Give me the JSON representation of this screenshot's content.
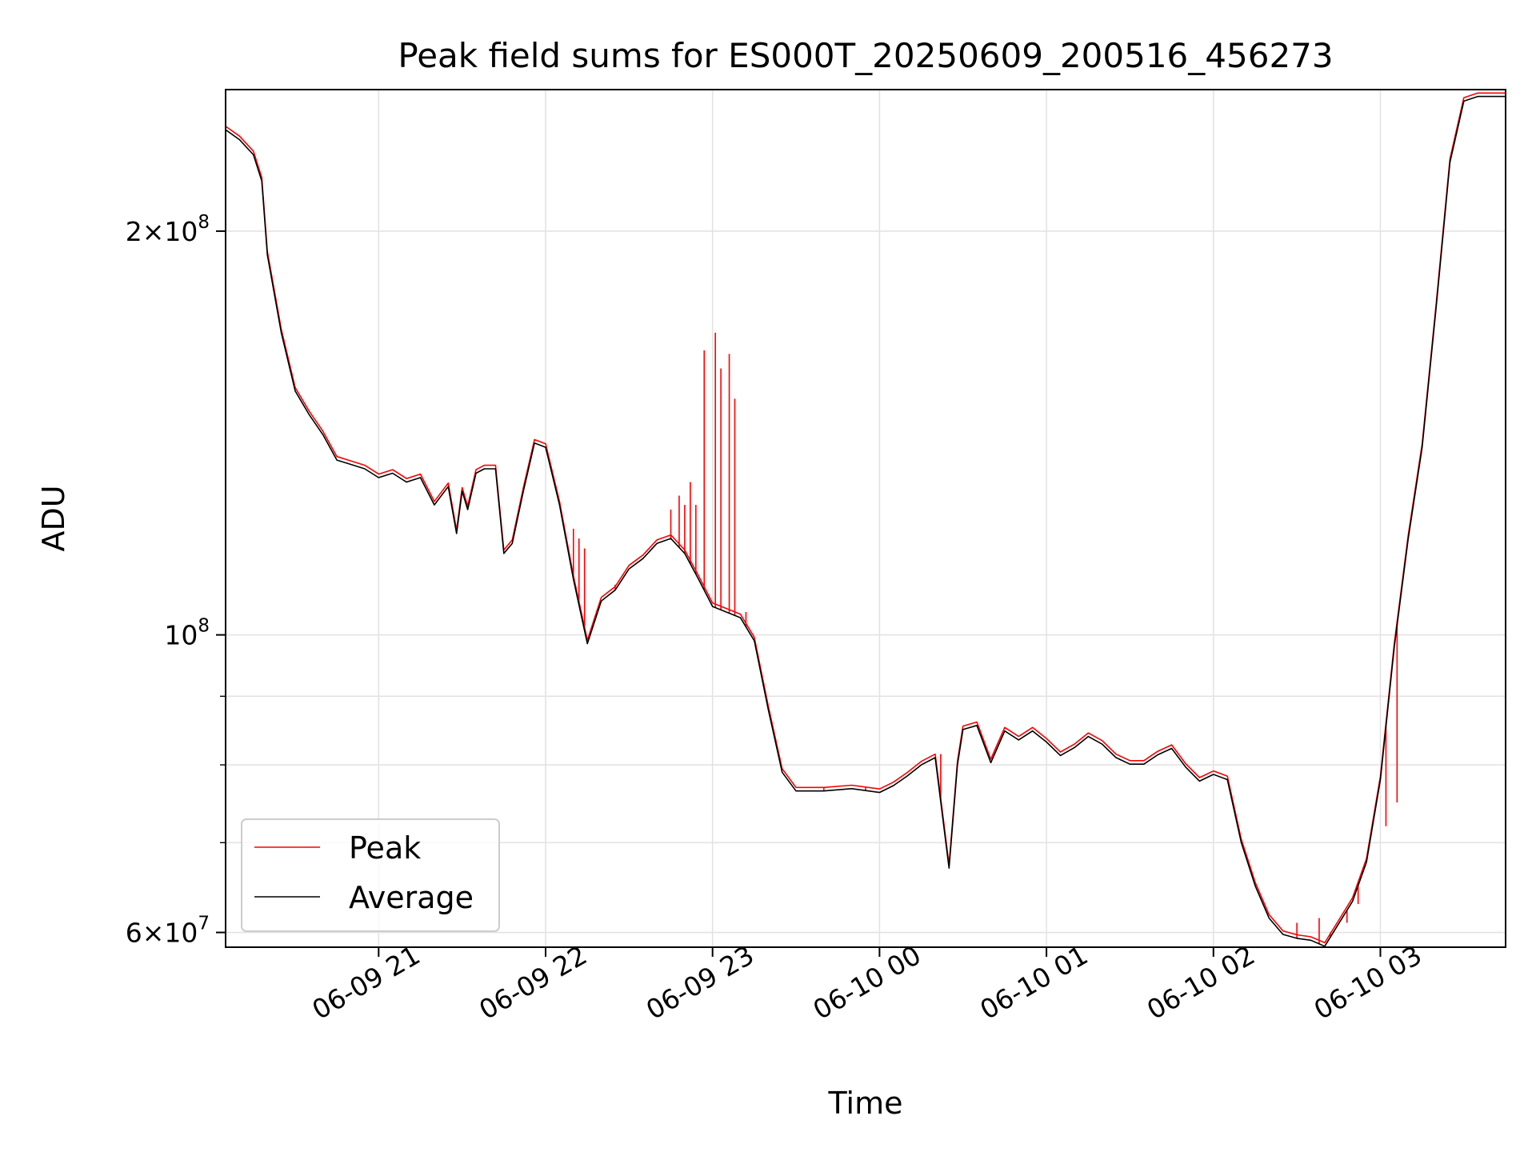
{
  "chart_data": {
    "type": "line",
    "title": "Peak field sums for ES000T_20250609_200516_456273",
    "xlabel": "Time",
    "ylabel": "ADU",
    "yscale": "log",
    "ylim": [
      58500000,
      255000000
    ],
    "xlim": [
      "2025-06-09 20:05",
      "2025-06-10 03:45"
    ],
    "grid": true,
    "legend_position": "lower-left",
    "x_ticks": [
      {
        "x": "2025-06-09 21:00",
        "label": "06-09 21"
      },
      {
        "x": "2025-06-09 22:00",
        "label": "06-09 22"
      },
      {
        "x": "2025-06-09 23:00",
        "label": "06-09 23"
      },
      {
        "x": "2025-06-10 00:00",
        "label": "06-10 00"
      },
      {
        "x": "2025-06-10 01:00",
        "label": "06-10 01"
      },
      {
        "x": "2025-06-10 02:00",
        "label": "06-10 02"
      },
      {
        "x": "2025-06-10 03:00",
        "label": "06-10 03"
      }
    ],
    "y_ticks": [
      {
        "y": 60000000,
        "base": "6",
        "exp": "7"
      },
      {
        "y": 100000000,
        "base": "",
        "exp": "8"
      },
      {
        "y": 200000000,
        "base": "2",
        "exp": "8"
      }
    ],
    "y_minor_ticks": [
      70000000,
      80000000,
      90000000
    ],
    "series": [
      {
        "name": "Average",
        "color": "#000000",
        "x": [
          "2025-06-09 20:05",
          "2025-06-09 20:10",
          "2025-06-09 20:15",
          "2025-06-09 20:18",
          "2025-06-09 20:20",
          "2025-06-09 20:25",
          "2025-06-09 20:30",
          "2025-06-09 20:35",
          "2025-06-09 20:40",
          "2025-06-09 20:45",
          "2025-06-09 20:50",
          "2025-06-09 20:55",
          "2025-06-09 21:00",
          "2025-06-09 21:05",
          "2025-06-09 21:10",
          "2025-06-09 21:15",
          "2025-06-09 21:20",
          "2025-06-09 21:25",
          "2025-06-09 21:28",
          "2025-06-09 21:30",
          "2025-06-09 21:32",
          "2025-06-09 21:35",
          "2025-06-09 21:38",
          "2025-06-09 21:42",
          "2025-06-09 21:45",
          "2025-06-09 21:48",
          "2025-06-09 21:52",
          "2025-06-09 21:56",
          "2025-06-09 22:00",
          "2025-06-09 22:05",
          "2025-06-09 22:10",
          "2025-06-09 22:15",
          "2025-06-09 22:20",
          "2025-06-09 22:25",
          "2025-06-09 22:30",
          "2025-06-09 22:35",
          "2025-06-09 22:40",
          "2025-06-09 22:45",
          "2025-06-09 22:50",
          "2025-06-09 22:55",
          "2025-06-09 23:00",
          "2025-06-09 23:05",
          "2025-06-09 23:10",
          "2025-06-09 23:15",
          "2025-06-09 23:20",
          "2025-06-09 23:25",
          "2025-06-09 23:30",
          "2025-06-09 23:40",
          "2025-06-09 23:50",
          "2025-06-10 00:00",
          "2025-06-10 00:05",
          "2025-06-10 00:10",
          "2025-06-10 00:15",
          "2025-06-10 00:20",
          "2025-06-10 00:25",
          "2025-06-10 00:28",
          "2025-06-10 00:30",
          "2025-06-10 00:35",
          "2025-06-10 00:40",
          "2025-06-10 00:45",
          "2025-06-10 00:50",
          "2025-06-10 00:55",
          "2025-06-10 01:00",
          "2025-06-10 01:05",
          "2025-06-10 01:10",
          "2025-06-10 01:15",
          "2025-06-10 01:20",
          "2025-06-10 01:25",
          "2025-06-10 01:30",
          "2025-06-10 01:35",
          "2025-06-10 01:40",
          "2025-06-10 01:45",
          "2025-06-10 01:50",
          "2025-06-10 01:55",
          "2025-06-10 02:00",
          "2025-06-10 02:05",
          "2025-06-10 02:10",
          "2025-06-10 02:15",
          "2025-06-10 02:20",
          "2025-06-10 02:25",
          "2025-06-10 02:30",
          "2025-06-10 02:35",
          "2025-06-10 02:40",
          "2025-06-10 02:45",
          "2025-06-10 02:50",
          "2025-06-10 02:55",
          "2025-06-10 03:00",
          "2025-06-10 03:05",
          "2025-06-10 03:10",
          "2025-06-10 03:15",
          "2025-06-10 03:20",
          "2025-06-10 03:25",
          "2025-06-10 03:30",
          "2025-06-10 03:35",
          "2025-06-10 03:40",
          "2025-06-10 03:45"
        ],
        "y": [
          238000000,
          234000000,
          228000000,
          218000000,
          192000000,
          168000000,
          152000000,
          146000000,
          141000000,
          135000000,
          134000000,
          133000000,
          131000000,
          132000000,
          130000000,
          131000000,
          125000000,
          129000000,
          119000000,
          128000000,
          124000000,
          132000000,
          133000000,
          133000000,
          115000000,
          117000000,
          128000000,
          139000000,
          138000000,
          125000000,
          110000000,
          98500000,
          106000000,
          108000000,
          112000000,
          114000000,
          117000000,
          118000000,
          115000000,
          110000000,
          105000000,
          104000000,
          103000000,
          99000000,
          88000000,
          79000000,
          76500000,
          76500000,
          76800000,
          76300000,
          77200000,
          78500000,
          80000000,
          81000000,
          67000000,
          80000000,
          85000000,
          85600000,
          80300000,
          84800000,
          83500000,
          84800000,
          83200000,
          81300000,
          82400000,
          84000000,
          82900000,
          81000000,
          80100000,
          80100000,
          81400000,
          82300000,
          79700000,
          77800000,
          78700000,
          78000000,
          70000000,
          65000000,
          61500000,
          59800000,
          59400000,
          59200000,
          58600000,
          60900000,
          63300000,
          67700000,
          78000000,
          98000000,
          118000000,
          138000000,
          175000000,
          225000000,
          250000000,
          252000000,
          252000000,
          252000000
        ]
      },
      {
        "name": "Peak",
        "color": "#ff0000",
        "x": [
          "2025-06-09 22:10",
          "2025-06-09 22:12",
          "2025-06-09 22:14",
          "2025-06-09 22:25",
          "2025-06-09 22:45",
          "2025-06-09 22:48",
          "2025-06-09 22:50",
          "2025-06-09 22:52",
          "2025-06-09 22:54",
          "2025-06-09 22:57",
          "2025-06-09 23:01",
          "2025-06-09 23:03",
          "2025-06-09 23:06",
          "2025-06-09 23:08",
          "2025-06-09 23:12",
          "2025-06-09 23:27",
          "2025-06-09 23:40",
          "2025-06-09 23:55",
          "2025-06-10 00:18",
          "2025-06-10 00:22",
          "2025-06-10 02:30",
          "2025-06-10 02:38",
          "2025-06-10 02:42",
          "2025-06-10 02:48",
          "2025-06-10 02:52",
          "2025-06-10 03:02",
          "2025-06-10 03:06"
        ],
        "y": [
          120000000,
          118000000,
          116000000,
          109000000,
          124000000,
          127000000,
          125000000,
          130000000,
          125000000,
          163000000,
          168000000,
          158000000,
          162000000,
          150000000,
          104000000,
          78000000,
          77000000,
          77000000,
          80500000,
          81500000,
          61000000,
          61500000,
          60000000,
          61000000,
          63000000,
          72000000,
          75000000
        ]
      }
    ]
  }
}
